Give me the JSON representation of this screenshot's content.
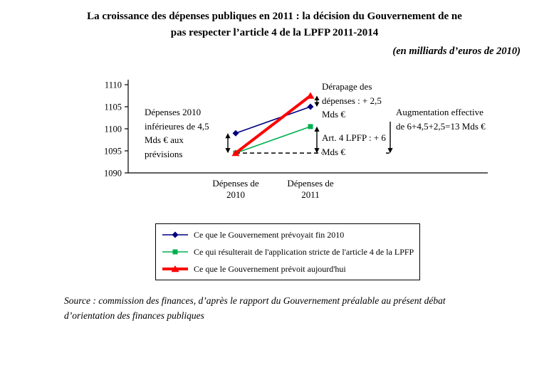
{
  "title": {
    "line1": "La croissance des dépenses publiques en 2011 : la décision du Gouvernement de ne",
    "line2": "pas respecter l’article 4 de la LPFP 2011-2014"
  },
  "subtitle": "(en milliards d’euros de 2010)",
  "source": "Source : commission des finances, d’après le rapport du Gouvernement préalable au présent débat d’orientation des finances publiques",
  "chart_data": {
    "type": "line",
    "categories": [
      "Dépenses de 2010",
      "Dépenses de 2011"
    ],
    "ylim": [
      1090,
      1110
    ],
    "yticks": [
      1090,
      1095,
      1100,
      1105,
      1110
    ],
    "grid": false,
    "legend_position": "bottom",
    "series": [
      {
        "name": "Ce que le Gouvernement prévoyait fin 2010",
        "values": [
          1099,
          1105
        ],
        "color": "#000080",
        "marker": "diamond",
        "line_width": 1.6
      },
      {
        "name": "Ce qui résulterait de l'application stricte de l'article 4 de la LPFP",
        "values": [
          1094.5,
          1100.5
        ],
        "color": "#00B050",
        "marker": "square",
        "line_width": 1.6
      },
      {
        "name": "Ce que le Gouvernement prévoit aujourd'hui",
        "values": [
          1094.5,
          1107.5
        ],
        "color": "#FF0000",
        "marker": "triangle",
        "line_width": 4
      }
    ],
    "dashed_baseline_value": 1094.5,
    "annotations": [
      {
        "text": "Dépenses 2010 inférieures de 4,5 Mds € aux prévisions",
        "arrow": {
          "anchor": "cat0",
          "from": 1099,
          "to": 1094.5
        }
      },
      {
        "text": "Dérapage des dépenses : + 2,5 Mds €",
        "arrow": {
          "anchor": "cat1",
          "from": 1107.5,
          "to": 1105
        }
      },
      {
        "text": "Art. 4 LPFP : + 6 Mds €",
        "arrow": {
          "anchor": "cat1",
          "from": 1100.5,
          "to": 1094.5
        }
      },
      {
        "text": "Augmentation effective de 6+4,5+2,5=13 Mds €",
        "arrow": {
          "anchor": "right",
          "from": 1107.5,
          "to": 1094.5
        }
      }
    ]
  }
}
